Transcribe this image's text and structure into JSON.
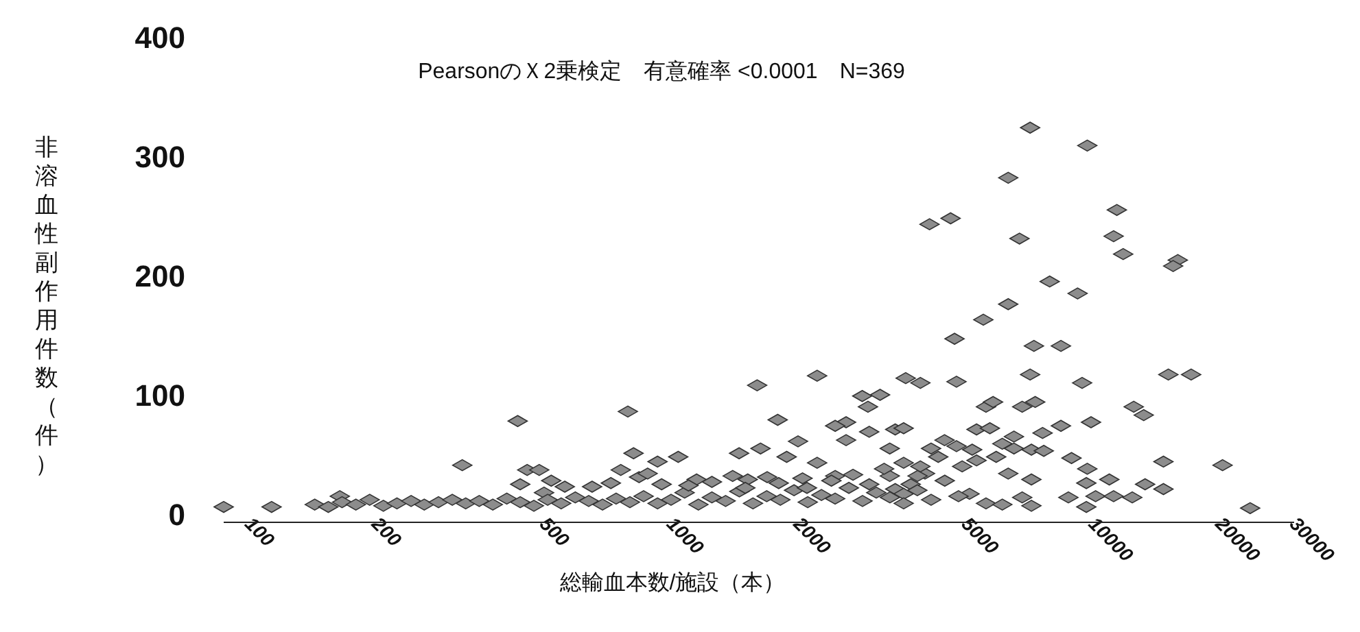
{
  "chart_data": {
    "type": "scatter",
    "title": "PearsonのＸ2乗検定　有意確率 <0.0001　N=369",
    "xlabel": "総輸血本数/施設（本）",
    "ylabel": "非溶血性副作用件数（件）",
    "color": "#8c8c8c",
    "marker": "diamond",
    "log": "x",
    "xlim": [
      87,
      30000
    ],
    "ylim": [
      0,
      400
    ],
    "xticks": [
      100,
      200,
      500,
      1000,
      2000,
      5000,
      10000,
      20000,
      30000
    ],
    "yticks": [
      0,
      100,
      200,
      300,
      400
    ],
    "x": [
      7100,
      9700,
      6300,
      11400,
      11200,
      11800,
      15900,
      15500,
      4100,
      4600,
      6700,
      7900,
      9200,
      6300,
      5500,
      4700,
      7250,
      8400,
      15100,
      17100,
      7100,
      9430,
      4750,
      3600,
      3900,
      2220,
      1600,
      1790,
      2840,
      3130,
      2930,
      2000,
      2600,
      2950,
      3400,
      5580,
      5800,
      6800,
      7300,
      12500,
      13200,
      9900,
      8400,
      5300,
      5700,
      6500,
      7600,
      4135,
      4750,
      5175,
      6100,
      6500,
      7150,
      7650,
      8900,
      9700,
      14700,
      20300,
      23600,
      4900,
      5300,
      5900,
      6300,
      7150,
      4000,
      3700,
      3400,
      9650,
      10940,
      13300,
      14700,
      10150,
      11200,
      12400,
      8750,
      9650,
      5100,
      5580,
      6100,
      6800,
      7150,
      87,
      113,
      143,
      154,
      164,
      320,
      433,
      790,
      815,
      929,
      1040,
      456,
      487,
      439,
      520,
      560,
      500,
      650,
      720,
      760,
      840,
      880,
      950,
      1450,
      1630,
      1880,
      2450,
      2600,
      3300,
      3560,
      1400,
      1520,
      1690,
      2050,
      2220,
      2450,
      2950,
      3300,
      3560,
      3840,
      3560,
      1150,
      166,
      179,
      193,
      208,
      224,
      242,
      260,
      281,
      303,
      326,
      351,
      378,
      408,
      439,
      473,
      510,
      549,
      593,
      638,
      688,
      741,
      799,
      861,
      929,
      1000,
      1077,
      1161,
      1250,
      1347,
      1452,
      1564,
      1686,
      1816,
      1957,
      2109,
      2273,
      2449,
      2640,
      2844,
      3066,
      3303,
      3560,
      3836,
      4135,
      4456,
      4803,
      1100,
      1250,
      1500,
      1800,
      2100,
      2400,
      2700,
      3200,
      4300,
      4450,
      3900
    ],
    "values": [
      324,
      309,
      282,
      255,
      233,
      218,
      213,
      208,
      243,
      248,
      231,
      195,
      185,
      176,
      163,
      147,
      141,
      141,
      117,
      117,
      117,
      110,
      111,
      114,
      110,
      116,
      108,
      79,
      99,
      100,
      90,
      61,
      77,
      69,
      71,
      90,
      94,
      90,
      94,
      90,
      83,
      77,
      74,
      71,
      72,
      65,
      68,
      55,
      57,
      54,
      59,
      55,
      54,
      53,
      47,
      38,
      44,
      41,
      5,
      40,
      45,
      48,
      34,
      29,
      34,
      25,
      21,
      26,
      29,
      25,
      21,
      15,
      15,
      14,
      14,
      6,
      17,
      9,
      8,
      14,
      7,
      6,
      6,
      8,
      6,
      15,
      41,
      78,
      86,
      51,
      44,
      48,
      37,
      37,
      25,
      28,
      23,
      18,
      23,
      26,
      37,
      31,
      34,
      25,
      51,
      55,
      48,
      74,
      62,
      55,
      72,
      32,
      29,
      31,
      30,
      43,
      32,
      25,
      32,
      43,
      32,
      17,
      29,
      10,
      8,
      12,
      7,
      9,
      11,
      8,
      10,
      12,
      9,
      11,
      8,
      13,
      10,
      7,
      12,
      9,
      14,
      11,
      8,
      13,
      10,
      15,
      9,
      12,
      18,
      8,
      14,
      11,
      19,
      9,
      15,
      12,
      20,
      10,
      16,
      13,
      22,
      11,
      18,
      14,
      9,
      20,
      12,
      28,
      15,
      24,
      27,
      22,
      26,
      22,
      28,
      33,
      38,
      48,
      62,
      40
    ]
  }
}
